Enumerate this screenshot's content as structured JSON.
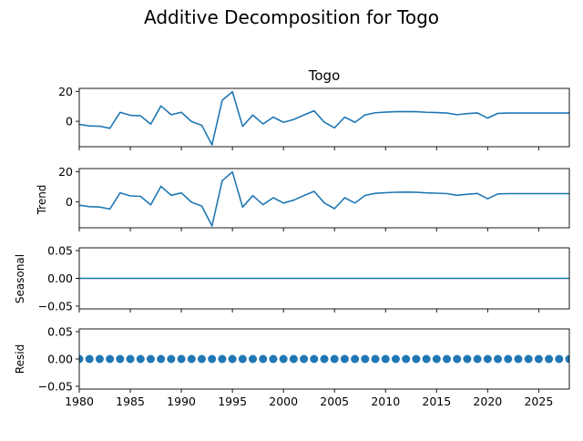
{
  "chart_data": {
    "type": "line",
    "title": "Additive Decomposition for Togo",
    "x": [
      1980,
      1981,
      1982,
      1983,
      1984,
      1985,
      1986,
      1987,
      1988,
      1989,
      1990,
      1991,
      1992,
      1993,
      1994,
      1995,
      1996,
      1997,
      1998,
      1999,
      2000,
      2001,
      2002,
      2003,
      2004,
      2005,
      2006,
      2007,
      2008,
      2009,
      2010,
      2011,
      2012,
      2013,
      2014,
      2015,
      2016,
      2017,
      2018,
      2019,
      2020,
      2021,
      2022,
      2023,
      2024,
      2025,
      2026,
      2027,
      2028
    ],
    "xlim": [
      1980,
      2028
    ],
    "xticks": [
      "1980",
      "1985",
      "1990",
      "1995",
      "2000",
      "2005",
      "2010",
      "2015",
      "2020",
      "2025"
    ],
    "line_color": "#1f77b4",
    "panels": [
      {
        "title": "Togo",
        "ylabel": "",
        "style": "line",
        "ylim": [
          -17,
          22
        ],
        "yticks": [
          "20",
          "0"
        ],
        "yticks_values": [
          20,
          0
        ],
        "values": [
          -2.1,
          -3.1,
          -3.3,
          -4.7,
          6.0,
          4.0,
          3.7,
          -1.9,
          10.3,
          4.4,
          6.0,
          -0.2,
          -2.7,
          -15.8,
          14.0,
          19.8,
          -3.4,
          4.2,
          -1.8,
          2.8,
          -0.7,
          1.2,
          4.2,
          7.0,
          -0.6,
          -4.4,
          2.8,
          -0.7,
          4.3,
          5.7,
          6.1,
          6.4,
          6.5,
          6.4,
          6.0,
          5.8,
          5.5,
          4.4,
          5.1,
          5.6,
          2.1,
          5.3,
          5.5,
          5.5,
          5.5,
          5.5,
          5.5,
          5.5,
          5.5
        ]
      },
      {
        "title": "",
        "ylabel": "Trend",
        "style": "line",
        "ylim": [
          -17,
          22
        ],
        "yticks": [
          "20",
          "0"
        ],
        "yticks_values": [
          20,
          0
        ],
        "values": [
          -2.1,
          -3.1,
          -3.3,
          -4.7,
          6.0,
          4.0,
          3.7,
          -1.9,
          10.3,
          4.4,
          6.0,
          -0.2,
          -2.7,
          -15.8,
          14.0,
          19.8,
          -3.4,
          4.2,
          -1.8,
          2.8,
          -0.7,
          1.2,
          4.2,
          7.0,
          -0.6,
          -4.4,
          2.8,
          -0.7,
          4.3,
          5.7,
          6.1,
          6.4,
          6.5,
          6.4,
          6.0,
          5.8,
          5.5,
          4.4,
          5.1,
          5.6,
          2.1,
          5.3,
          5.5,
          5.5,
          5.5,
          5.5,
          5.5,
          5.5,
          5.5
        ]
      },
      {
        "title": "",
        "ylabel": "Seasonal",
        "style": "line",
        "ylim": [
          -0.055,
          0.055
        ],
        "yticks": [
          "0.05",
          "0.00",
          "−0.05"
        ],
        "yticks_values": [
          0.05,
          0,
          -0.05
        ],
        "values": [
          0,
          0,
          0,
          0,
          0,
          0,
          0,
          0,
          0,
          0,
          0,
          0,
          0,
          0,
          0,
          0,
          0,
          0,
          0,
          0,
          0,
          0,
          0,
          0,
          0,
          0,
          0,
          0,
          0,
          0,
          0,
          0,
          0,
          0,
          0,
          0,
          0,
          0,
          0,
          0,
          0,
          0,
          0,
          0,
          0,
          0,
          0,
          0,
          0
        ]
      },
      {
        "title": "",
        "ylabel": "Resid",
        "style": "markers",
        "ylim": [
          -0.055,
          0.055
        ],
        "yticks": [
          "0.05",
          "0.00",
          "−0.05"
        ],
        "yticks_values": [
          0.05,
          0,
          -0.05
        ],
        "values": [
          0,
          0,
          0,
          0,
          0,
          0,
          0,
          0,
          0,
          0,
          0,
          0,
          0,
          0,
          0,
          0,
          0,
          0,
          0,
          0,
          0,
          0,
          0,
          0,
          0,
          0,
          0,
          0,
          0,
          0,
          0,
          0,
          0,
          0,
          0,
          0,
          0,
          0,
          0,
          0,
          0,
          0,
          0,
          0,
          0,
          0,
          0,
          0,
          0
        ]
      }
    ]
  }
}
